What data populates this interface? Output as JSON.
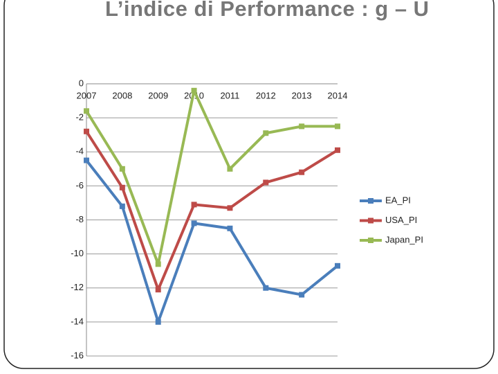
{
  "chart_data": {
    "type": "line",
    "title": "L’indice di Performance : g – U",
    "categories": [
      "2007",
      "2008",
      "2009",
      "2010",
      "2011",
      "2012",
      "2013",
      "2014"
    ],
    "series": [
      {
        "name": "EA_PI",
        "color": "#4a7ebb",
        "values": [
          -4.5,
          -7.2,
          -14.0,
          -8.2,
          -8.5,
          -12.0,
          -12.4,
          -10.7
        ]
      },
      {
        "name": "USA_PI",
        "color": "#be4b48",
        "values": [
          -2.8,
          -6.1,
          -12.1,
          -7.1,
          -7.3,
          -5.8,
          -5.2,
          -3.9
        ]
      },
      {
        "name": "Japan_PI",
        "color": "#98b954",
        "values": [
          -1.6,
          -5.0,
          -10.6,
          -0.4,
          -5.0,
          -2.9,
          -2.5,
          -2.5
        ]
      }
    ],
    "ylim": [
      -16,
      0
    ],
    "yticks": [
      0,
      -2,
      -4,
      -6,
      -8,
      -10,
      -12,
      -14,
      -16
    ],
    "grid": true,
    "legend": "right"
  }
}
